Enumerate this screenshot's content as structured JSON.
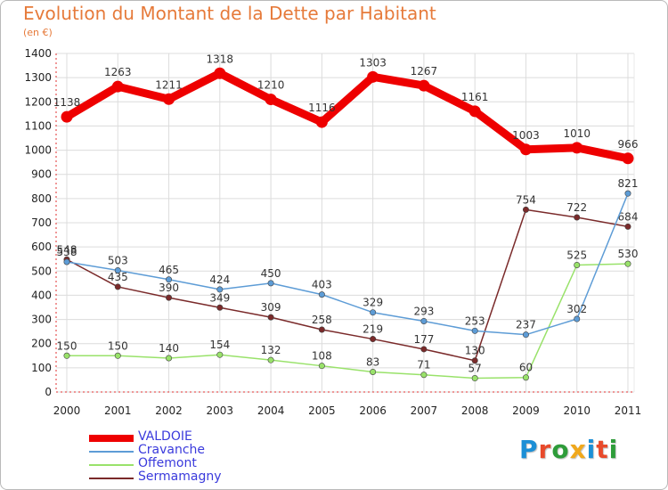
{
  "title": "Evolution du Montant de la Dette par Habitant",
  "subtitle": "(en €)",
  "logo": {
    "text": "Proxiti",
    "letters": [
      {
        "ch": "P",
        "color": "#1c8fd6"
      },
      {
        "ch": "r",
        "color": "#e84a2b"
      },
      {
        "ch": "o",
        "color": "#2e9c3a"
      },
      {
        "ch": "x",
        "color": "#f0a81c"
      },
      {
        "ch": "i",
        "color": "#1c8fd6"
      },
      {
        "ch": "t",
        "color": "#e84a2b"
      },
      {
        "ch": "i",
        "color": "#2e9c3a"
      }
    ]
  },
  "chart_data": {
    "type": "line",
    "title": "Evolution du Montant de la Dette par Habitant",
    "subtitle": "(en €)",
    "x": [
      "2000",
      "2001",
      "2002",
      "2003",
      "2004",
      "2005",
      "2006",
      "2007",
      "2008",
      "2009",
      "2010",
      "2011"
    ],
    "ylim": [
      0,
      1400
    ],
    "yticks": [
      0,
      100,
      200,
      300,
      400,
      500,
      600,
      700,
      800,
      900,
      1000,
      1100,
      1200,
      1300,
      1400
    ],
    "grid": true,
    "legend_position": "bottom-left",
    "series": [
      {
        "name": "VALDOIE",
        "color": "#ee0000",
        "values": [
          1138,
          1263,
          1211,
          1318,
          1210,
          1116,
          1303,
          1267,
          1161,
          1003,
          1010,
          966
        ]
      },
      {
        "name": "Cravanche",
        "color": "#5d9cd6",
        "values": [
          538,
          503,
          465,
          424,
          450,
          403,
          329,
          293,
          253,
          237,
          302,
          821
        ]
      },
      {
        "name": "Offemont",
        "color": "#99e26a",
        "values": [
          150,
          150,
          140,
          154,
          132,
          108,
          83,
          71,
          57,
          60,
          525,
          530
        ]
      },
      {
        "name": "Sermamagny",
        "color": "#7a2a2a",
        "values": [
          548,
          435,
          390,
          349,
          309,
          258,
          219,
          177,
          130,
          754,
          722,
          684
        ]
      }
    ]
  }
}
